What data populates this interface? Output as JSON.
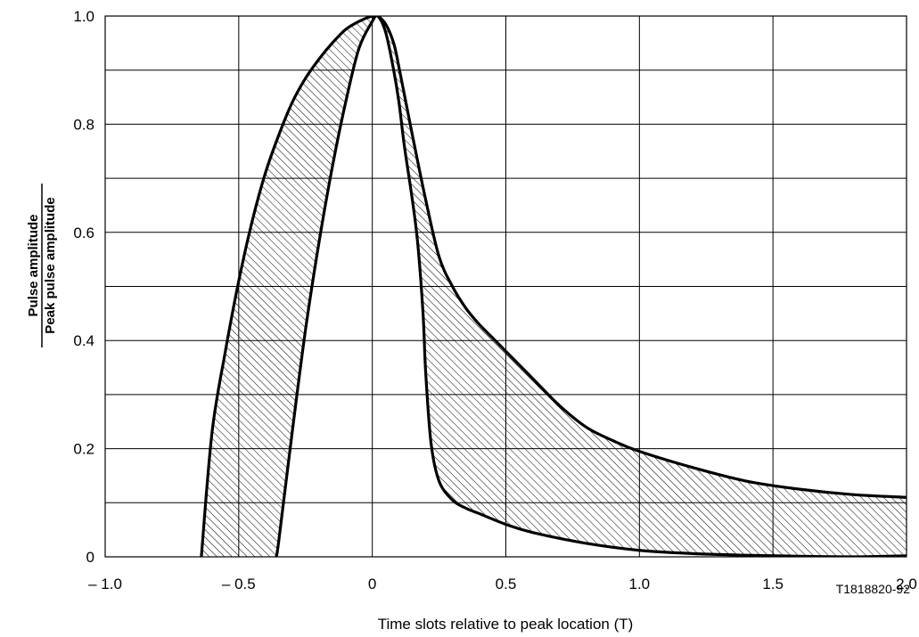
{
  "chart_data": {
    "type": "area",
    "title": "",
    "xlabel": "Time slots relative to peak location (T)",
    "ylabel_numerator": "Pulse amplitude",
    "ylabel_denominator": "Peak pulse amplitude",
    "figure_id": "T1818820-92",
    "xlim": [
      -1.0,
      2.0
    ],
    "ylim": [
      0,
      1.0
    ],
    "x_ticks": [
      -1.0,
      -0.5,
      0,
      0.5,
      1.0,
      1.5,
      2.0
    ],
    "x_tick_labels": [
      "– 1.0",
      "– 0.5",
      "0",
      "0.5",
      "1.0",
      "1.5",
      "2.0"
    ],
    "y_ticks": [
      0,
      0.2,
      0.4,
      0.6,
      0.8,
      1.0
    ],
    "y_tick_labels": [
      "0",
      "0.2",
      "0.4",
      "0.6",
      "0.8",
      "1.0"
    ],
    "grid": true,
    "x_grid_step": 0.5,
    "y_grid_step": 0.1,
    "shaded_region": "between upper and lower mask limits (hatched)",
    "upper_mask": {
      "x": [
        -0.64,
        -0.6,
        -0.55,
        -0.5,
        -0.45,
        -0.4,
        -0.35,
        -0.3,
        -0.25,
        -0.2,
        -0.15,
        -0.1,
        -0.05,
        0.0,
        0.02,
        0.05,
        0.08,
        0.1,
        0.15,
        0.2,
        0.25,
        0.3,
        0.35,
        0.4,
        0.45,
        0.5,
        0.6,
        0.7,
        0.8,
        0.9,
        1.0,
        1.2,
        1.4,
        1.6,
        1.8,
        2.0
      ],
      "y": [
        0.0,
        0.23,
        0.38,
        0.51,
        0.62,
        0.71,
        0.78,
        0.84,
        0.885,
        0.92,
        0.95,
        0.975,
        0.99,
        1.0,
        1.0,
        0.985,
        0.95,
        0.905,
        0.78,
        0.66,
        0.555,
        0.5,
        0.46,
        0.43,
        0.405,
        0.38,
        0.33,
        0.28,
        0.24,
        0.215,
        0.195,
        0.165,
        0.14,
        0.125,
        0.115,
        0.11
      ]
    },
    "lower_mask": {
      "x": [
        -0.36,
        -0.35,
        -0.3,
        -0.25,
        -0.2,
        -0.15,
        -0.1,
        -0.05,
        0.0,
        0.02,
        0.05,
        0.08,
        0.1,
        0.12,
        0.15,
        0.17,
        0.19,
        0.2,
        0.22,
        0.25,
        0.3,
        0.35,
        0.4,
        0.5,
        0.6,
        0.8,
        1.0,
        1.2,
        1.4,
        1.6,
        1.8,
        2.0
      ],
      "y": [
        0.0,
        0.03,
        0.23,
        0.42,
        0.58,
        0.72,
        0.84,
        0.94,
        0.99,
        1.0,
        0.97,
        0.9,
        0.84,
        0.76,
        0.66,
        0.58,
        0.45,
        0.34,
        0.21,
        0.14,
        0.105,
        0.09,
        0.08,
        0.06,
        0.045,
        0.025,
        0.012,
        0.006,
        0.003,
        0.001,
        0.0,
        0.002
      ]
    }
  }
}
